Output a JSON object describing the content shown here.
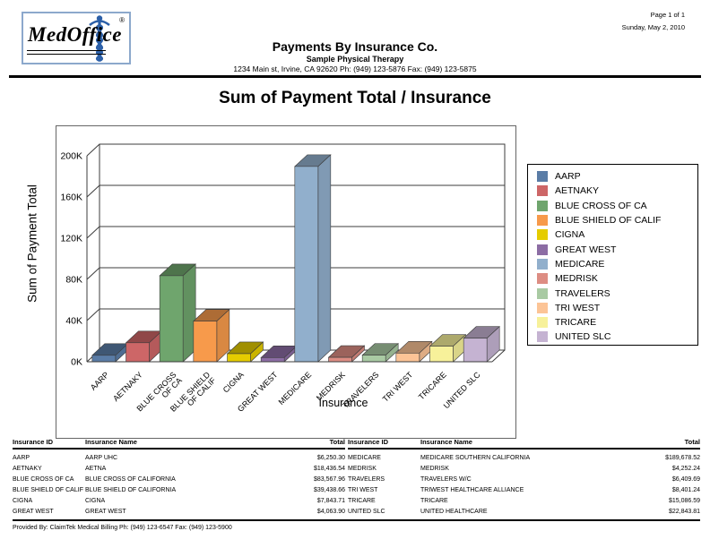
{
  "header": {
    "page_indicator": "Page 1 of 1",
    "date": "Sunday, May 2, 2010",
    "logo": {
      "text": "MedOffice",
      "registered": "®"
    },
    "report_title": "Payments By Insurance Co.",
    "practice_name": "Sample Physical Therapy",
    "practice_contact": "1234 Main st, Irvine, CA 92620 Ph: (949) 123-5876 Fax: (949) 123-5875"
  },
  "chart_data": {
    "type": "bar",
    "projection": "3d",
    "title": "Sum of Payment Total / Insurance",
    "xlabel": "Insurance",
    "ylabel": "Sum of Payment Total",
    "ylim": [
      0,
      200000
    ],
    "yticks": [
      0,
      40000,
      80000,
      120000,
      160000,
      200000
    ],
    "ytick_labels": [
      "0K",
      "40K",
      "80K",
      "120K",
      "160K",
      "200K"
    ],
    "grid": true,
    "legend_position": "right",
    "categories": [
      "AARP",
      "AETNAKY",
      "BLUE CROSS OF CA",
      "BLUE SHIELD OF CALIF",
      "CIGNA",
      "GREAT WEST",
      "MEDICARE",
      "MEDRISK",
      "TRAVELERS",
      "TRI WEST",
      "TRICARE",
      "UNITED SLC"
    ],
    "tick_lines": [
      [
        "AARP"
      ],
      [
        "AETNAKY"
      ],
      [
        "BLUE CROSS",
        "OF CA"
      ],
      [
        "BLUE SHIELD",
        "OF CALIF"
      ],
      [
        "CIGNA"
      ],
      [
        "GREAT WEST"
      ],
      [
        "MEDICARE"
      ],
      [
        "MEDRISK"
      ],
      [
        "TRAVELERS"
      ],
      [
        "TRI WEST"
      ],
      [
        "TRICARE"
      ],
      [
        "UNITED SLC"
      ]
    ],
    "values": [
      6250.3,
      18436.54,
      83567.96,
      39438.66,
      7843.71,
      4063.9,
      189678.52,
      4252.24,
      6409.69,
      8401.24,
      15086.59,
      22843.81
    ],
    "colors": [
      "#5a7ca6",
      "#cd6667",
      "#6fa56d",
      "#f79a4b",
      "#e5cc00",
      "#8c6da4",
      "#91afcc",
      "#dd8d83",
      "#a9caa3",
      "#fcc496",
      "#f7f19a",
      "#c5b3d2"
    ],
    "accent_color": "#2b5fa8"
  },
  "tables": {
    "headers": {
      "id": "Insurance ID",
      "name": "Insurance Name",
      "total": "Total"
    },
    "left_rows": [
      {
        "id": "AARP",
        "name": "AARP UHC",
        "total": "$6,250.30"
      },
      {
        "id": "AETNAKY",
        "name": "AETNA",
        "total": "$18,436.54"
      },
      {
        "id": "BLUE CROSS OF CA",
        "name": "BLUE CROSS OF CALIFORNIA",
        "total": "$83,567.96"
      },
      {
        "id": "BLUE SHIELD OF CALIF",
        "name": "BLUE SHIELD OF CALIFORNIA",
        "total": "$39,438.66"
      },
      {
        "id": "CIGNA",
        "name": "CIGNA",
        "total": "$7,843.71"
      },
      {
        "id": "GREAT WEST",
        "name": "GREAT WEST",
        "total": "$4,063.90"
      }
    ],
    "right_rows": [
      {
        "id": "MEDICARE",
        "name": "MEDICARE SOUTHERN CALIFORNIA",
        "total": "$189,678.52"
      },
      {
        "id": "MEDRISK",
        "name": "MEDRISK",
        "total": "$4,252.24"
      },
      {
        "id": "TRAVELERS",
        "name": "TRAVELERS W/C",
        "total": "$6,409.69"
      },
      {
        "id": "TRI WEST",
        "name": "TRIWEST HEALTHCARE ALLIANCE",
        "total": "$8,401.24"
      },
      {
        "id": "TRICARE",
        "name": "TRICARE",
        "total": "$15,086.59"
      },
      {
        "id": "UNITED SLC",
        "name": "UNITED HEALTHCARE",
        "total": "$22,843.81"
      }
    ]
  },
  "footer": {
    "provided_by": "Provided By: ClaimTek Medical Billing Ph: (949) 123-6547 Fax: (949) 123-5900"
  }
}
